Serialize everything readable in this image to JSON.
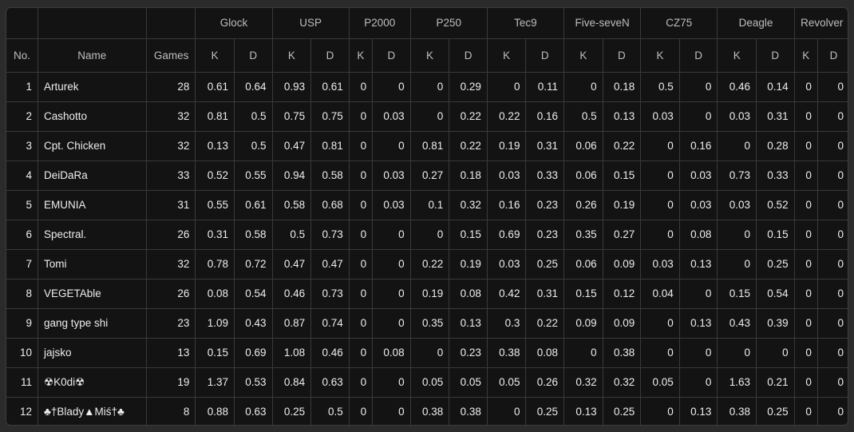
{
  "headers": {
    "no": "No.",
    "name": "Name",
    "games": "Games",
    "k": "K",
    "d": "D",
    "weapons": [
      "Glock",
      "USP",
      "P2000",
      "P250",
      "Tec9",
      "Five-seveN",
      "CZ75",
      "Deagle",
      "Revolver"
    ]
  },
  "rows": [
    {
      "no": "1",
      "name": "Arturek",
      "games": "28",
      "stats": [
        "0.61",
        "0.64",
        "0.93",
        "0.61",
        "0",
        "0",
        "0",
        "0.29",
        "0",
        "0.11",
        "0",
        "0.18",
        "0.5",
        "0",
        "0.46",
        "0.14",
        "0",
        "0"
      ]
    },
    {
      "no": "2",
      "name": "Cashotto",
      "games": "32",
      "stats": [
        "0.81",
        "0.5",
        "0.75",
        "0.75",
        "0",
        "0.03",
        "0",
        "0.22",
        "0.22",
        "0.16",
        "0.5",
        "0.13",
        "0.03",
        "0",
        "0.03",
        "0.31",
        "0",
        "0"
      ]
    },
    {
      "no": "3",
      "name": "Cpt. Chicken",
      "games": "32",
      "stats": [
        "0.13",
        "0.5",
        "0.47",
        "0.81",
        "0",
        "0",
        "0.81",
        "0.22",
        "0.19",
        "0.31",
        "0.06",
        "0.22",
        "0",
        "0.16",
        "0",
        "0.28",
        "0",
        "0"
      ]
    },
    {
      "no": "4",
      "name": "DeiDaRa",
      "games": "33",
      "stats": [
        "0.52",
        "0.55",
        "0.94",
        "0.58",
        "0",
        "0.03",
        "0.27",
        "0.18",
        "0.03",
        "0.33",
        "0.06",
        "0.15",
        "0",
        "0.03",
        "0.73",
        "0.33",
        "0",
        "0"
      ]
    },
    {
      "no": "5",
      "name": "EMUNIA",
      "games": "31",
      "stats": [
        "0.55",
        "0.61",
        "0.58",
        "0.68",
        "0",
        "0.03",
        "0.1",
        "0.32",
        "0.16",
        "0.23",
        "0.26",
        "0.19",
        "0",
        "0.03",
        "0.03",
        "0.52",
        "0",
        "0"
      ]
    },
    {
      "no": "6",
      "name": "Spectral.",
      "games": "26",
      "stats": [
        "0.31",
        "0.58",
        "0.5",
        "0.73",
        "0",
        "0",
        "0",
        "0.15",
        "0.69",
        "0.23",
        "0.35",
        "0.27",
        "0",
        "0.08",
        "0",
        "0.15",
        "0",
        "0"
      ]
    },
    {
      "no": "7",
      "name": "Tomi",
      "games": "32",
      "stats": [
        "0.78",
        "0.72",
        "0.47",
        "0.47",
        "0",
        "0",
        "0.22",
        "0.19",
        "0.03",
        "0.25",
        "0.06",
        "0.09",
        "0.03",
        "0.13",
        "0",
        "0.25",
        "0",
        "0"
      ]
    },
    {
      "no": "8",
      "name": "VEGETAble",
      "games": "26",
      "stats": [
        "0.08",
        "0.54",
        "0.46",
        "0.73",
        "0",
        "0",
        "0.19",
        "0.08",
        "0.42",
        "0.31",
        "0.15",
        "0.12",
        "0.04",
        "0",
        "0.15",
        "0.54",
        "0",
        "0"
      ]
    },
    {
      "no": "9",
      "name": "gang type shi",
      "games": "23",
      "stats": [
        "1.09",
        "0.43",
        "0.87",
        "0.74",
        "0",
        "0",
        "0.35",
        "0.13",
        "0.3",
        "0.22",
        "0.09",
        "0.09",
        "0",
        "0.13",
        "0.43",
        "0.39",
        "0",
        "0"
      ]
    },
    {
      "no": "10",
      "name": "jajsko",
      "games": "13",
      "stats": [
        "0.15",
        "0.69",
        "1.08",
        "0.46",
        "0",
        "0.08",
        "0",
        "0.23",
        "0.38",
        "0.08",
        "0",
        "0.38",
        "0",
        "0",
        "0",
        "0",
        "0",
        "0"
      ]
    },
    {
      "no": "11",
      "name": "☢K0di☢",
      "games": "19",
      "stats": [
        "1.37",
        "0.53",
        "0.84",
        "0.63",
        "0",
        "0",
        "0.05",
        "0.05",
        "0.05",
        "0.26",
        "0.32",
        "0.32",
        "0.05",
        "0",
        "1.63",
        "0.21",
        "0",
        "0"
      ]
    },
    {
      "no": "12",
      "name": "♣†Blady▲Miś†♣",
      "games": "8",
      "stats": [
        "0.88",
        "0.63",
        "0.25",
        "0.5",
        "0",
        "0",
        "0.38",
        "0.38",
        "0",
        "0.25",
        "0.13",
        "0.25",
        "0",
        "0.13",
        "0.38",
        "0.25",
        "0",
        "0"
      ]
    }
  ]
}
